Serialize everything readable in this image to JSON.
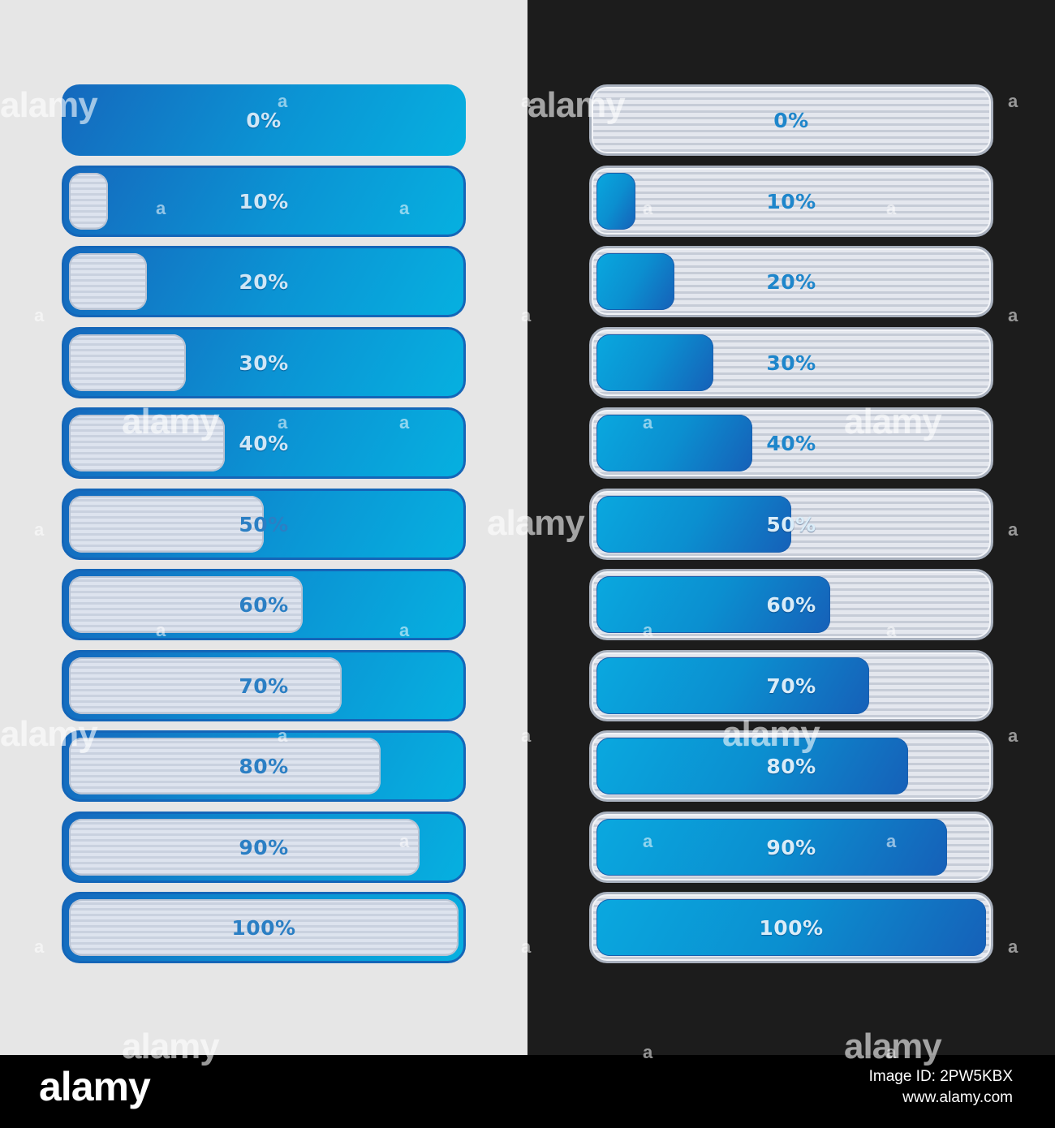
{
  "colors": {
    "light_background": "#e6e6e6",
    "dark_background": "#1c1c1c",
    "blue_start": "#1568bd",
    "blue_end": "#06b0e0",
    "silver": "#dde3ee",
    "footer": "#000000"
  },
  "panels": [
    {
      "name": "light",
      "bars": [
        {
          "label": "0%",
          "progress": 0
        },
        {
          "label": "10%",
          "progress": 10
        },
        {
          "label": "20%",
          "progress": 20
        },
        {
          "label": "30%",
          "progress": 30
        },
        {
          "label": "40%",
          "progress": 40
        },
        {
          "label": "50%",
          "progress": 50
        },
        {
          "label": "60%",
          "progress": 60
        },
        {
          "label": "70%",
          "progress": 70
        },
        {
          "label": "80%",
          "progress": 80
        },
        {
          "label": "90%",
          "progress": 90
        },
        {
          "label": "100%",
          "progress": 100
        }
      ]
    },
    {
      "name": "dark",
      "bars": [
        {
          "label": "0%",
          "progress": 0
        },
        {
          "label": "10%",
          "progress": 10
        },
        {
          "label": "20%",
          "progress": 20
        },
        {
          "label": "30%",
          "progress": 30
        },
        {
          "label": "40%",
          "progress": 40
        },
        {
          "label": "50%",
          "progress": 50
        },
        {
          "label": "60%",
          "progress": 60
        },
        {
          "label": "70%",
          "progress": 70
        },
        {
          "label": "80%",
          "progress": 80
        },
        {
          "label": "90%",
          "progress": 90
        },
        {
          "label": "100%",
          "progress": 100
        }
      ]
    }
  ],
  "watermark": {
    "word": "alamy",
    "tile": "a"
  },
  "footer": {
    "logo": "alamy",
    "image_id": "Image ID: 2PW5KBX",
    "site": "www.alamy.com"
  }
}
